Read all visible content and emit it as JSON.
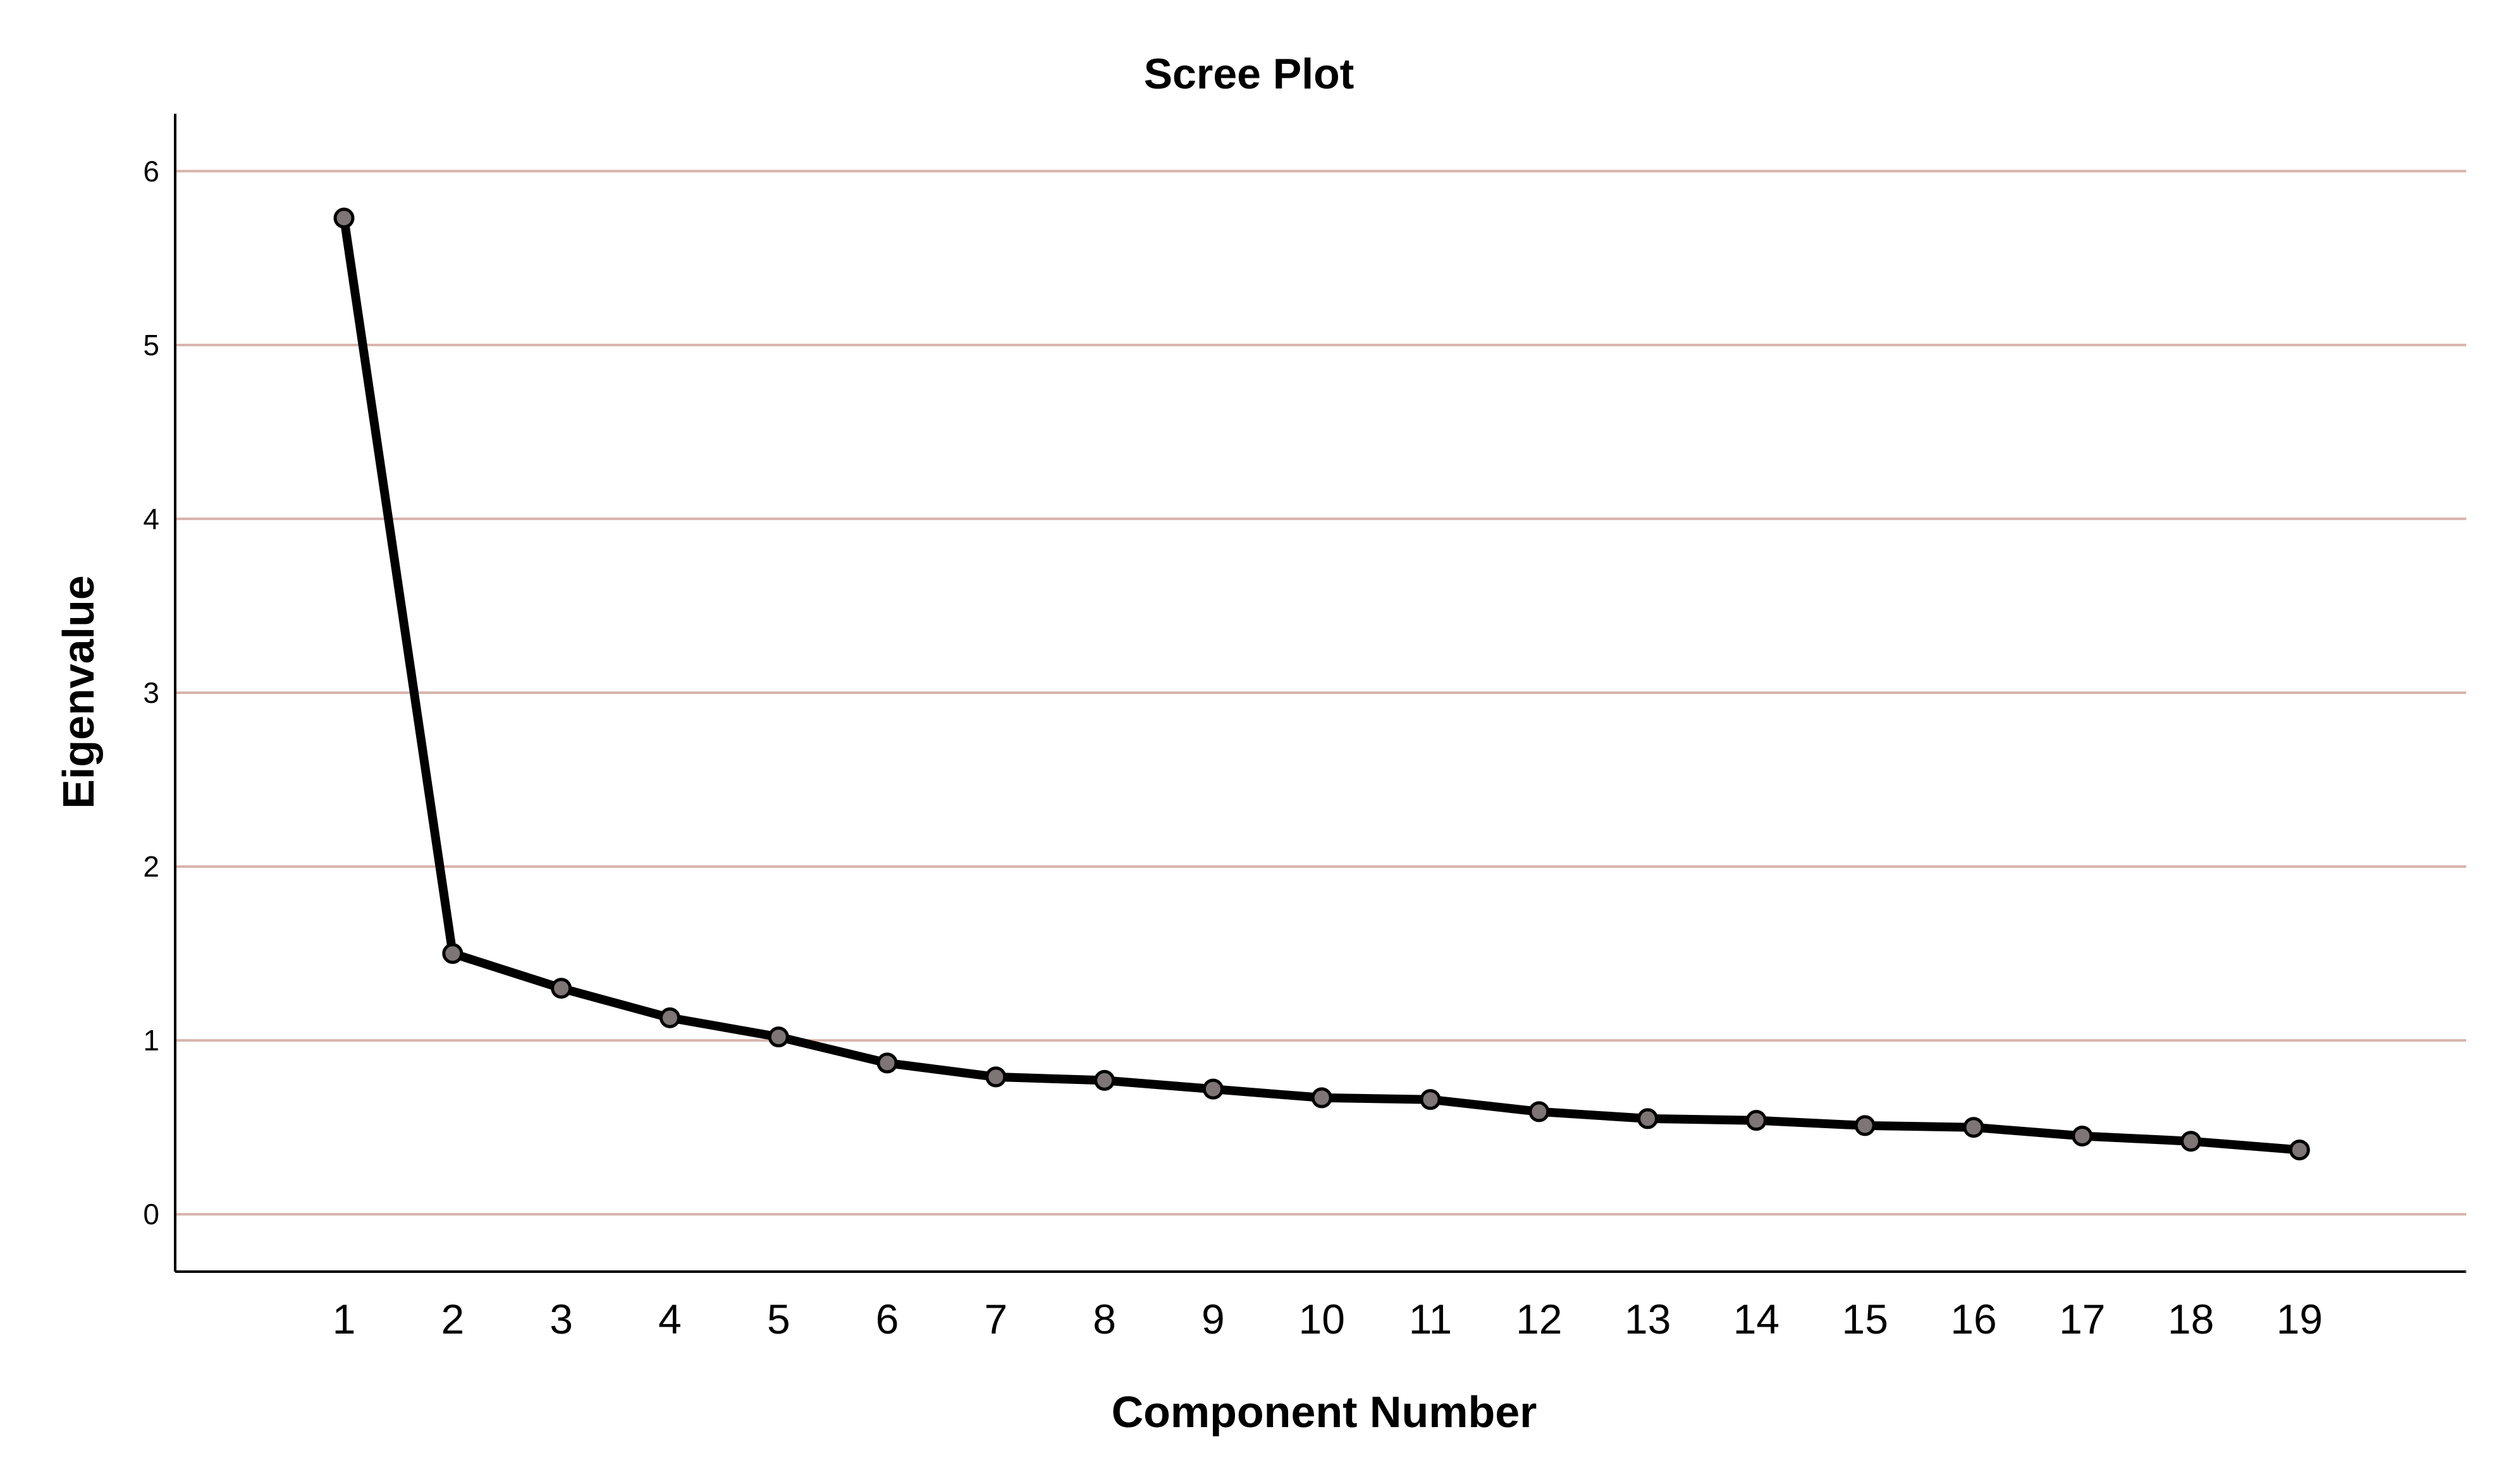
{
  "chart_data": {
    "type": "line",
    "title": "Scree Plot",
    "xlabel": "Component Number",
    "ylabel": "Eigenvalue",
    "categories": [
      "1",
      "2",
      "3",
      "4",
      "5",
      "6",
      "7",
      "8",
      "9",
      "10",
      "11",
      "12",
      "13",
      "14",
      "15",
      "16",
      "17",
      "18",
      "19"
    ],
    "values": [
      5.73,
      1.5,
      1.3,
      1.13,
      1.02,
      0.87,
      0.79,
      0.77,
      0.72,
      0.67,
      0.66,
      0.59,
      0.55,
      0.54,
      0.51,
      0.5,
      0.45,
      0.42,
      0.37
    ],
    "y_ticks": [
      "0",
      "1",
      "2",
      "3",
      "4",
      "5",
      "6"
    ],
    "ylim": [
      -0.33,
      6.33
    ],
    "grid": "horizontal",
    "legend": "none",
    "colors": {
      "line": "#000000",
      "marker_fill": "#7d7576",
      "gridline": "#d9b3ad"
    }
  }
}
